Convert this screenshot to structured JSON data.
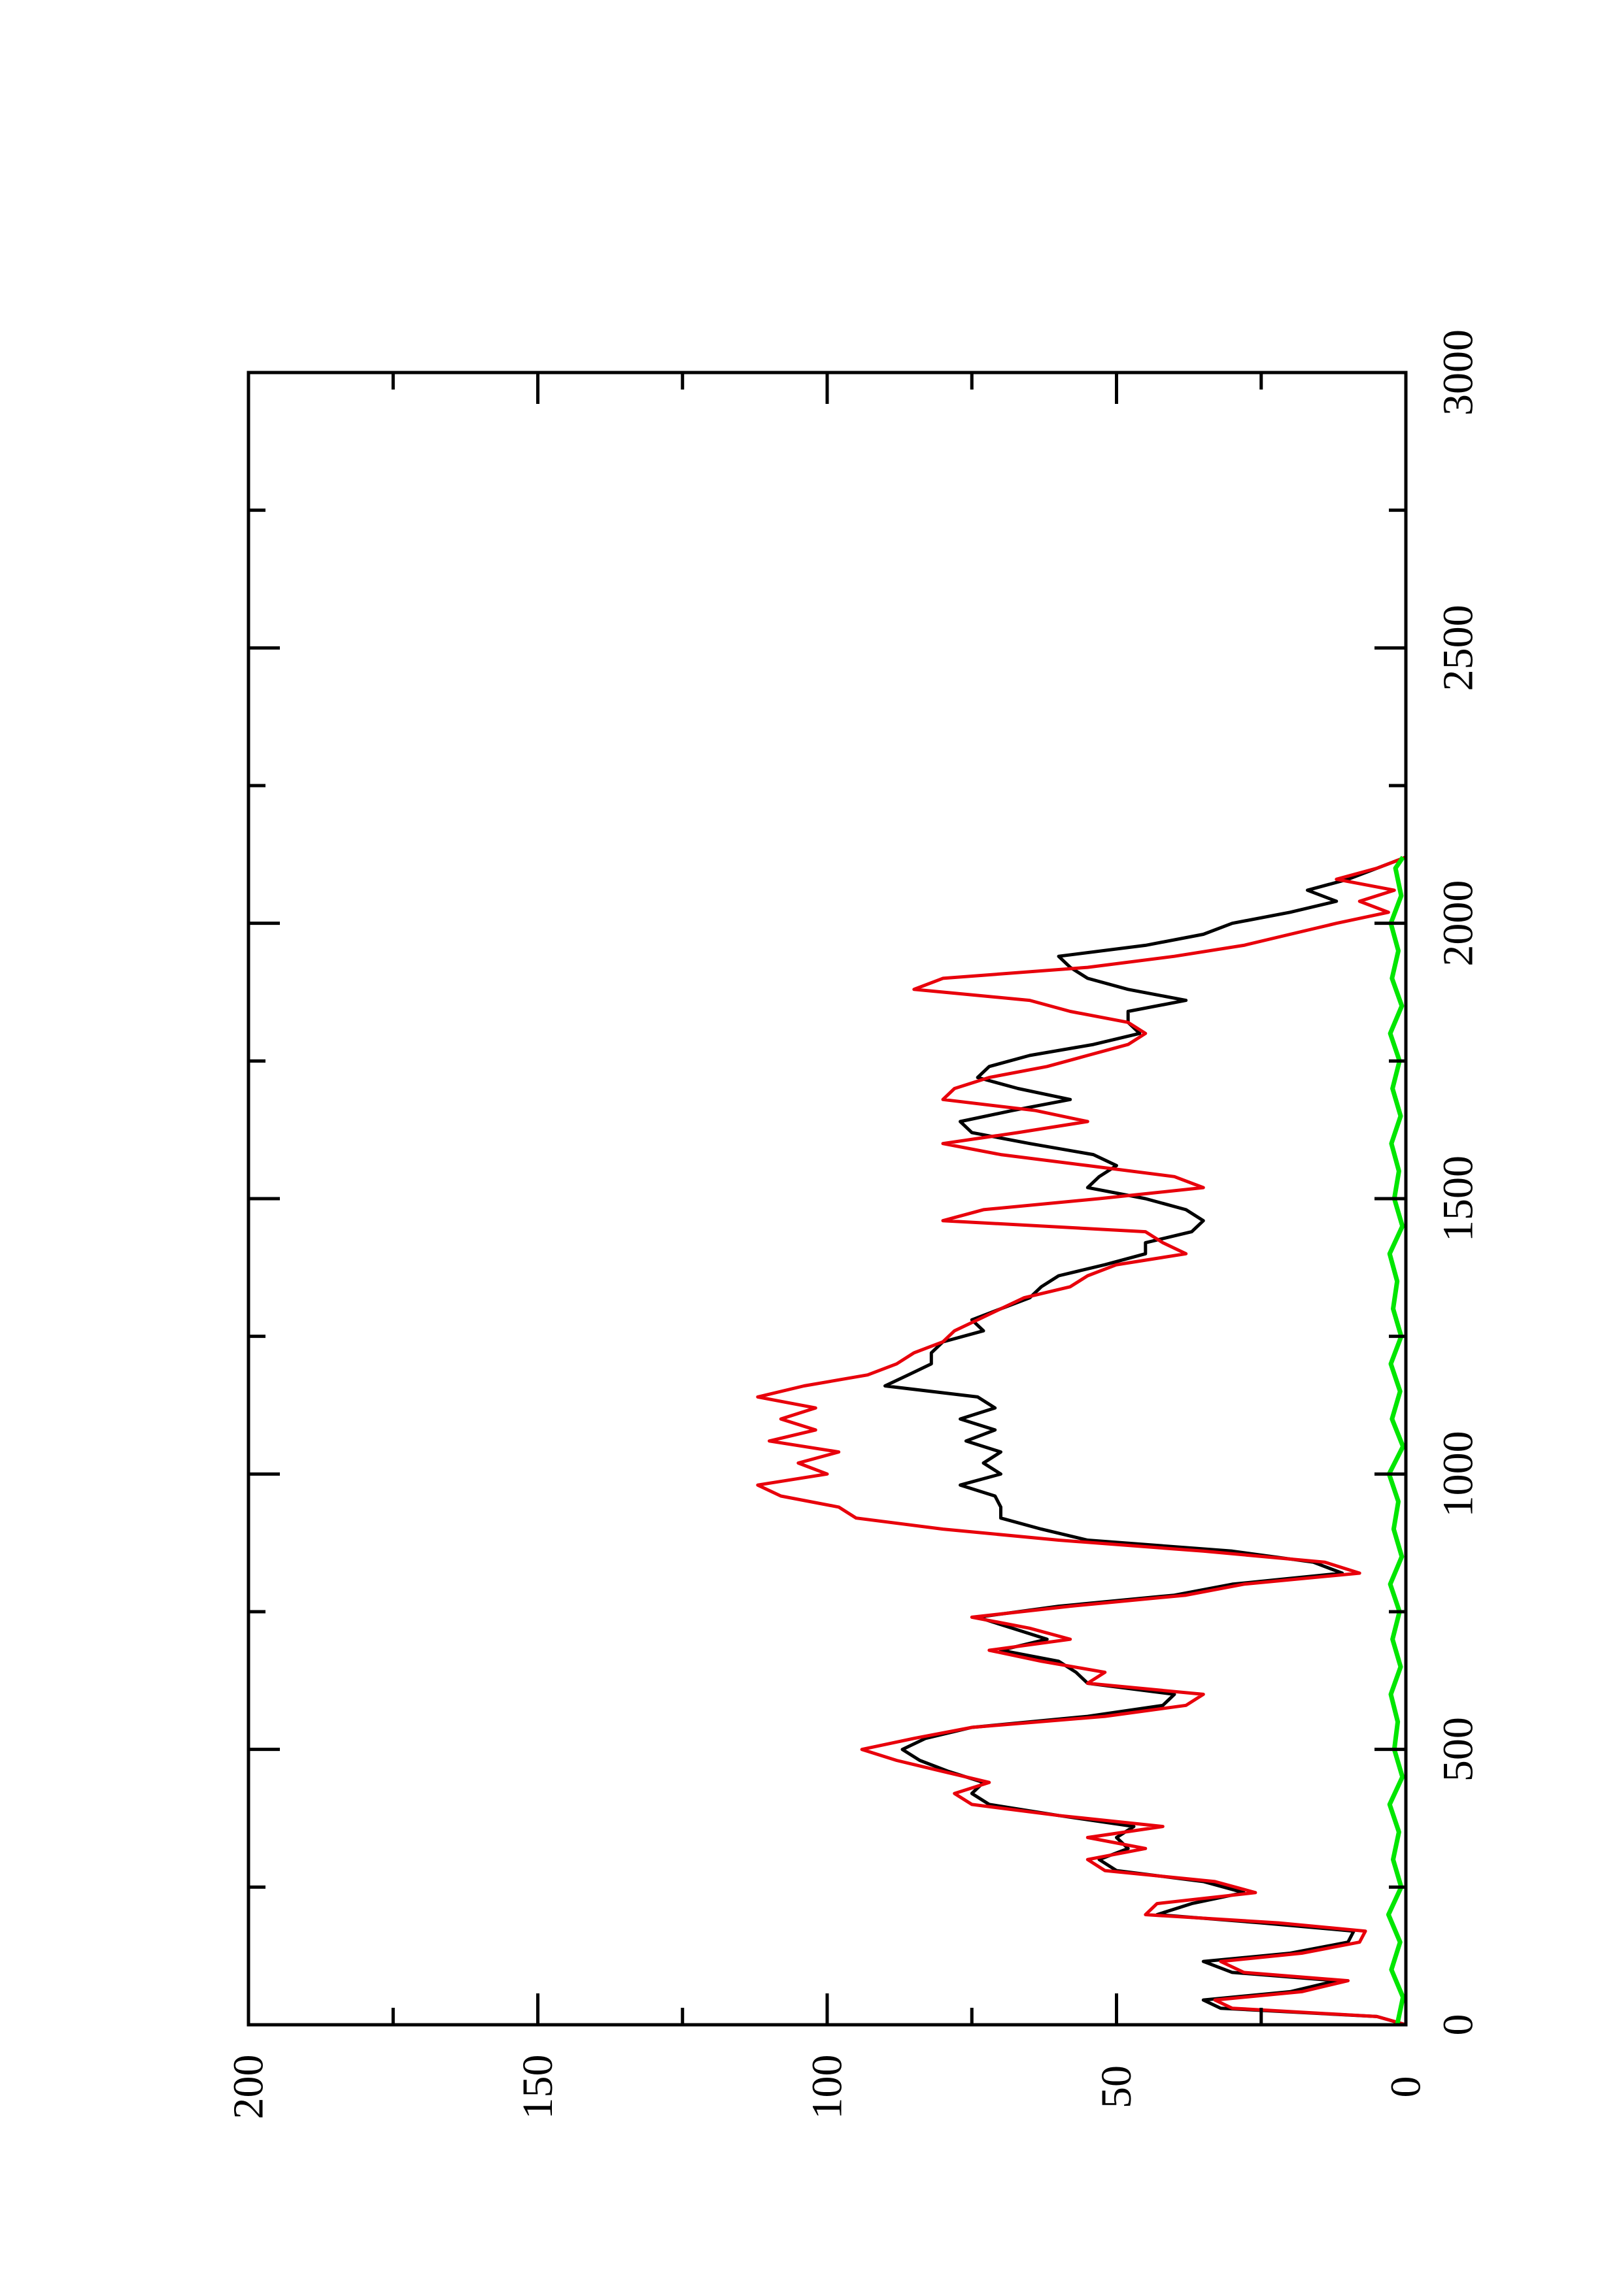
{
  "chart_data": {
    "type": "line",
    "orientation": "rotated-90-ccw",
    "title": "",
    "xlabel": "",
    "ylabel": "",
    "xlim": [
      0,
      3000
    ],
    "ylim": [
      0,
      200
    ],
    "x_ticks": [
      "0",
      "500",
      "1000",
      "1500",
      "2000",
      "2500",
      "3000"
    ],
    "y_ticks": [
      "0",
      "50",
      "100",
      "150",
      "200"
    ],
    "grid": false,
    "legend": "none",
    "series": [
      {
        "color": "#000000",
        "x": [
          0,
          15,
          30,
          45,
          60,
          80,
          95,
          115,
          130,
          150,
          170,
          185,
          200,
          220,
          240,
          260,
          280,
          300,
          320,
          340,
          360,
          380,
          400,
          420,
          440,
          460,
          480,
          500,
          520,
          540,
          560,
          580,
          600,
          620,
          640,
          660,
          680,
          700,
          720,
          740,
          760,
          780,
          800,
          820,
          840,
          860,
          880,
          900,
          920,
          940,
          960,
          980,
          1000,
          1020,
          1040,
          1060,
          1080,
          1100,
          1120,
          1140,
          1160,
          1180,
          1200,
          1220,
          1240,
          1260,
          1280,
          1300,
          1320,
          1340,
          1360,
          1380,
          1400,
          1420,
          1440,
          1460,
          1480,
          1500,
          1520,
          1540,
          1560,
          1580,
          1600,
          1620,
          1640,
          1660,
          1680,
          1700,
          1720,
          1740,
          1760,
          1780,
          1800,
          1820,
          1840,
          1860,
          1880,
          1900,
          1920,
          1940,
          1960,
          1980,
          2000,
          2020,
          2040,
          2060,
          2080,
          2100,
          2120
        ],
        "y": [
          0,
          5,
          32,
          35,
          20,
          12,
          30,
          35,
          20,
          10,
          9,
          25,
          43,
          37,
          28,
          35,
          50,
          53,
          48,
          50,
          47,
          60,
          72,
          75,
          73,
          79,
          84,
          87,
          83,
          75,
          55,
          42,
          40,
          55,
          57,
          60,
          70,
          62,
          68,
          74,
          60,
          40,
          30,
          11,
          16,
          30,
          55,
          63,
          70,
          70,
          71,
          77,
          70,
          73,
          70,
          76,
          71,
          77,
          71,
          74,
          90,
          86,
          82,
          82,
          80,
          73,
          75,
          70,
          65,
          63,
          60,
          52,
          45,
          45,
          37,
          35,
          38,
          45,
          55,
          53,
          50,
          54,
          65,
          75,
          77,
          68,
          58,
          67,
          74,
          72,
          65,
          54,
          46,
          48,
          48,
          38,
          48,
          55,
          58,
          60,
          45,
          35,
          30,
          20,
          12,
          17,
          10,
          5,
          0
        ]
      },
      {
        "color": "#e8000b",
        "x": [
          0,
          15,
          30,
          45,
          60,
          80,
          95,
          115,
          130,
          150,
          170,
          185,
          200,
          220,
          240,
          260,
          280,
          300,
          320,
          340,
          360,
          380,
          400,
          420,
          440,
          460,
          480,
          500,
          520,
          540,
          560,
          580,
          600,
          620,
          640,
          660,
          680,
          700,
          720,
          740,
          760,
          780,
          800,
          820,
          840,
          860,
          880,
          900,
          920,
          940,
          960,
          980,
          1000,
          1020,
          1040,
          1060,
          1080,
          1100,
          1120,
          1140,
          1160,
          1180,
          1200,
          1220,
          1240,
          1260,
          1280,
          1300,
          1320,
          1340,
          1360,
          1380,
          1400,
          1420,
          1440,
          1460,
          1480,
          1500,
          1520,
          1540,
          1560,
          1580,
          1600,
          1620,
          1640,
          1660,
          1680,
          1700,
          1720,
          1740,
          1760,
          1780,
          1800,
          1820,
          1840,
          1860,
          1880,
          1900,
          1920,
          1940,
          1960,
          1980,
          2000,
          2020,
          2040,
          2060,
          2080,
          2100,
          2120
        ],
        "y": [
          0,
          5,
          30,
          33,
          18,
          10,
          28,
          32,
          18,
          8,
          7,
          22,
          45,
          43,
          26,
          33,
          52,
          55,
          45,
          55,
          42,
          60,
          75,
          78,
          72,
          80,
          88,
          94,
          85,
          75,
          52,
          38,
          35,
          55,
          52,
          63,
          72,
          58,
          65,
          75,
          58,
          38,
          28,
          8,
          14,
          35,
          60,
          80,
          95,
          98,
          108,
          112,
          100,
          105,
          98,
          110,
          102,
          108,
          102,
          112,
          104,
          93,
          88,
          85,
          80,
          78,
          74,
          70,
          66,
          58,
          55,
          50,
          38,
          42,
          45,
          80,
          73,
          53,
          35,
          40,
          55,
          70,
          80,
          67,
          55,
          64,
          80,
          78,
          72,
          62,
          55,
          48,
          45,
          48,
          58,
          65,
          85,
          80,
          55,
          40,
          28,
          20,
          12,
          3,
          8,
          2,
          12,
          5,
          0
        ]
      },
      {
        "color": "#00e600",
        "x": [
          0,
          50,
          100,
          150,
          200,
          250,
          300,
          350,
          400,
          450,
          500,
          550,
          600,
          650,
          700,
          750,
          800,
          850,
          900,
          950,
          1000,
          1050,
          1100,
          1150,
          1200,
          1250,
          1300,
          1350,
          1400,
          1450,
          1500,
          1550,
          1600,
          1650,
          1700,
          1750,
          1800,
          1850,
          1900,
          1950,
          2000,
          2050,
          2100,
          2120
        ],
        "y": [
          1.5,
          0.5,
          2.5,
          1.0,
          3.0,
          0.8,
          2.2,
          1.2,
          2.8,
          0.6,
          2.0,
          1.4,
          2.6,
          0.9,
          2.3,
          1.1,
          2.7,
          0.7,
          2.1,
          1.3,
          2.9,
          0.5,
          2.4,
          1.0,
          2.6,
          0.8,
          2.2,
          1.5,
          2.8,
          0.6,
          2.0,
          1.2,
          2.5,
          0.9,
          2.3,
          1.1,
          2.7,
          0.7,
          2.4,
          1.3,
          2.6,
          0.8,
          1.8,
          0.5
        ]
      }
    ]
  }
}
